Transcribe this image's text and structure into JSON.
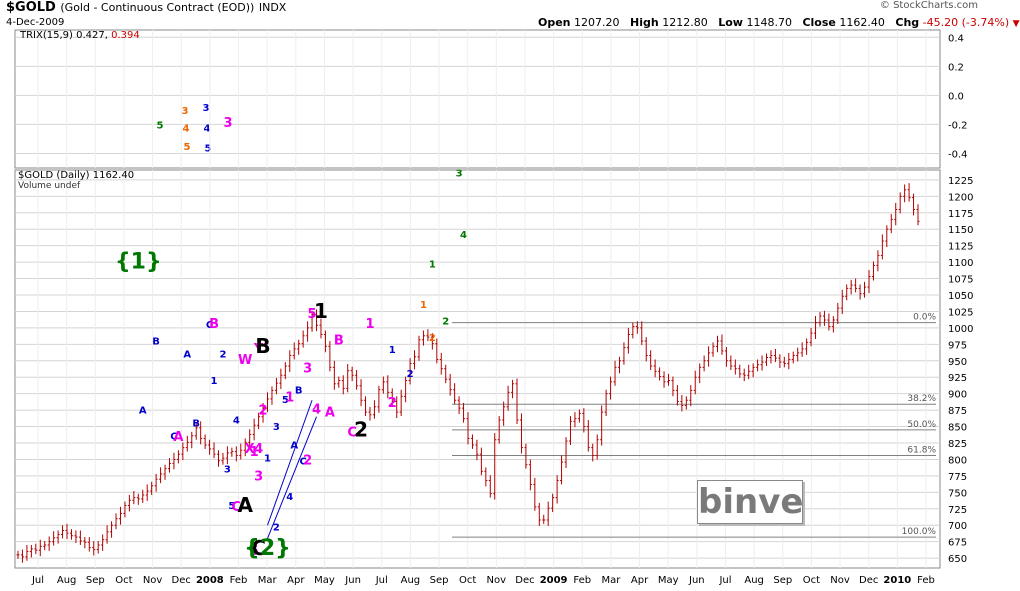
{
  "header": {
    "symbol": "$GOLD",
    "description": "(Gold - Continuous Contract (EOD))",
    "exchange": "INDX",
    "date": "4-Dec-2009",
    "brand": "© StockCharts.com",
    "open_label": "Open",
    "open": "1207.20",
    "high_label": "High",
    "high": "1212.80",
    "low_label": "Low",
    "low": "1148.70",
    "close_label": "Close",
    "close": "1162.40",
    "chg_label": "Chg",
    "chg": "-45.20 (-3.74%)"
  },
  "trix_legend": {
    "name": "TRIX(15,9)",
    "value": "0.427,",
    "signal": "0.394"
  },
  "gold_legend": {
    "name": "$GOLD (Daily) 1162.40",
    "volume": "Volume undef"
  },
  "watermark": "binve",
  "colors": {
    "price": "#b00000",
    "line_blue": "#0000cc",
    "grid": "#d4d4d4",
    "magenta": "#ee00ee",
    "green": "#007700",
    "orange": "#ee6600",
    "blue": "#0000cc",
    "black": "#000000"
  },
  "chart_data": [
    {
      "type": "line",
      "title": "TRIX(15,9)",
      "ylim": [
        -0.5,
        0.45
      ],
      "y_ticks": [
        "0.4",
        "0.2",
        "0.0",
        "-0.2",
        "-0.4"
      ],
      "annotations": [
        {
          "text": "5",
          "color": "green",
          "y": -0.2
        },
        {
          "text": "3",
          "color": "orange",
          "y": -0.1
        },
        {
          "text": "4",
          "color": "orange",
          "y": -0.22
        },
        {
          "text": "5",
          "color": "orange",
          "y": -0.35
        },
        {
          "text": "3",
          "color": "blue",
          "y": -0.08
        },
        {
          "text": "4",
          "color": "blue",
          "y": -0.22
        },
        {
          "text": "5",
          "color": "blue",
          "y": -0.36
        },
        {
          "text": "3",
          "color": "magenta",
          "y": -0.19
        }
      ]
    },
    {
      "type": "line",
      "title": "$GOLD (Daily)",
      "ylim": [
        635,
        1240
      ],
      "y_ticks": [
        "1225",
        "1200",
        "1175",
        "1150",
        "1125",
        "1100",
        "1075",
        "1050",
        "1025",
        "1000",
        "975",
        "950",
        "925",
        "900",
        "875",
        "850",
        "825",
        "800",
        "775",
        "750",
        "725",
        "700",
        "675",
        "650"
      ],
      "x_ticks": [
        "Jul",
        "Aug",
        "Sep",
        "Oct",
        "Nov",
        "Dec",
        "2008",
        "Feb",
        "Mar",
        "Apr",
        "May",
        "Jun",
        "Jul",
        "Aug",
        "Sep",
        "Oct",
        "Nov",
        "Dec",
        "2009",
        "Feb",
        "Mar",
        "Apr",
        "May",
        "Jun",
        "Jul",
        "Aug",
        "Sep",
        "Oct",
        "Nov",
        "Dec",
        "2010",
        "Feb"
      ],
      "close": [
        655,
        652,
        660,
        664,
        662,
        668,
        670,
        675,
        681,
        686,
        692,
        688,
        684,
        682,
        676,
        674,
        666,
        663,
        670,
        678,
        690,
        700,
        710,
        718,
        730,
        738,
        742,
        740,
        746,
        752,
        760,
        770,
        778,
        786,
        794,
        800,
        808,
        818,
        826,
        836,
        848,
        832,
        822,
        816,
        808,
        798,
        802,
        810,
        812,
        806,
        814,
        826,
        838,
        852,
        865,
        878,
        892,
        905,
        916,
        928,
        942,
        958,
        968,
        976,
        988,
        1000,
        1020,
        1004,
        990,
        972,
        940,
        915,
        920,
        908,
        935,
        928,
        912,
        890,
        872,
        868,
        880,
        906,
        918,
        902,
        888,
        872,
        896,
        920,
        946,
        956,
        982,
        988,
        986,
        976,
        952,
        938,
        922,
        906,
        890,
        878,
        862,
        832,
        822,
        808,
        782,
        768,
        748,
        830,
        860,
        880,
        902,
        915,
        860,
        818,
        792,
        762,
        728,
        708,
        708,
        726,
        742,
        768,
        796,
        828,
        858,
        862,
        870,
        850,
        818,
        806,
        830,
        872,
        900,
        918,
        940,
        950,
        970,
        990,
        1002,
        1000,
        980,
        958,
        942,
        934,
        926,
        918,
        920,
        905,
        888,
        882,
        890,
        905,
        925,
        940,
        950,
        962,
        972,
        980,
        965,
        950,
        942,
        938,
        930,
        928,
        934,
        940,
        944,
        948,
        955,
        958,
        954,
        948,
        946,
        952,
        958,
        962,
        968,
        978,
        992,
        1008,
        1018,
        1012,
        1002,
        1012,
        1030,
        1048,
        1060,
        1065,
        1060,
        1052,
        1062,
        1078,
        1095,
        1110,
        1132,
        1150,
        1165,
        1180,
        1200,
        1210,
        1198,
        1180,
        1162
      ],
      "fib_levels": [
        {
          "label": "0.0%",
          "price": 1008
        },
        {
          "label": "38.2%",
          "price": 884
        },
        {
          "label": "50.0%",
          "price": 845
        },
        {
          "label": "61.8%",
          "price": 806
        },
        {
          "label": "100.0%",
          "price": 682
        }
      ],
      "trendlines": [
        {
          "from": {
            "x": 56,
            "y": 700
          },
          "to": {
            "x": 66,
            "y": 890
          }
        },
        {
          "from": {
            "x": 56,
            "y": 680
          },
          "to": {
            "x": 67,
            "y": 865
          }
        }
      ],
      "wave_labels": [
        {
          "text": "{1}",
          "color": "green",
          "x": 27,
          "y": 1090,
          "size": "xl"
        },
        {
          "text": "A",
          "color": "blue",
          "x": 28,
          "y": 870,
          "size": "s"
        },
        {
          "text": "B",
          "color": "blue",
          "x": 31,
          "y": 975,
          "size": "s"
        },
        {
          "text": "C",
          "color": "blue",
          "x": 35,
          "y": 830,
          "size": "s"
        },
        {
          "text": "A",
          "color": "magenta",
          "x": 36,
          "y": 828,
          "size": "m"
        },
        {
          "text": "A",
          "color": "blue",
          "x": 38,
          "y": 955,
          "size": "s"
        },
        {
          "text": "B",
          "color": "blue",
          "x": 40,
          "y": 850,
          "size": "s"
        },
        {
          "text": "C",
          "color": "blue",
          "x": 43,
          "y": 1000,
          "size": "s"
        },
        {
          "text": "B",
          "color": "magenta",
          "x": 44,
          "y": 1000,
          "size": "m"
        },
        {
          "text": "1",
          "color": "blue",
          "x": 44,
          "y": 915,
          "size": "s"
        },
        {
          "text": "2",
          "color": "blue",
          "x": 46,
          "y": 955,
          "size": "s"
        },
        {
          "text": "3",
          "color": "blue",
          "x": 47,
          "y": 780,
          "size": "s"
        },
        {
          "text": "4",
          "color": "blue",
          "x": 49,
          "y": 855,
          "size": "s"
        },
        {
          "text": "5",
          "color": "blue",
          "x": 48,
          "y": 725,
          "size": "s"
        },
        {
          "text": "C",
          "color": "magenta",
          "x": 49,
          "y": 722,
          "size": "m"
        },
        {
          "text": "A",
          "color": "black",
          "x": 51,
          "y": 720,
          "size": "l"
        },
        {
          "text": "W",
          "color": "magenta",
          "x": 51,
          "y": 945,
          "size": "m"
        },
        {
          "text": "Y",
          "color": "magenta",
          "x": 54,
          "y": 962,
          "size": "m"
        },
        {
          "text": "B",
          "color": "black",
          "x": 55,
          "y": 962,
          "size": "l"
        },
        {
          "text": "X",
          "color": "magenta",
          "x": 52,
          "y": 810,
          "size": "m"
        },
        {
          "text": "1",
          "color": "magenta",
          "x": 53,
          "y": 805,
          "size": "m"
        },
        {
          "text": "4",
          "color": "magenta",
          "x": 54,
          "y": 810,
          "size": "m"
        },
        {
          "text": "2",
          "color": "magenta",
          "x": 55,
          "y": 868,
          "size": "m"
        },
        {
          "text": "3",
          "color": "magenta",
          "x": 54,
          "y": 768,
          "size": "m"
        },
        {
          "text": "1",
          "color": "blue",
          "x": 56,
          "y": 797,
          "size": "s"
        },
        {
          "text": "2",
          "color": "blue",
          "x": 58,
          "y": 692,
          "size": "s"
        },
        {
          "text": "3",
          "color": "blue",
          "x": 58,
          "y": 845,
          "size": "s"
        },
        {
          "text": "4",
          "color": "blue",
          "x": 61,
          "y": 738,
          "size": "s"
        },
        {
          "text": "5",
          "color": "blue",
          "x": 60,
          "y": 886,
          "size": "s"
        },
        {
          "text": "1",
          "color": "magenta",
          "x": 61,
          "y": 888,
          "size": "m"
        },
        {
          "text": "A",
          "color": "blue",
          "x": 62,
          "y": 817,
          "size": "s"
        },
        {
          "text": "B",
          "color": "blue",
          "x": 63,
          "y": 900,
          "size": "s"
        },
        {
          "text": "5",
          "color": "magenta",
          "x": 53,
          "y": 655,
          "size": "m"
        },
        {
          "text": "C",
          "color": "black",
          "x": 54,
          "y": 655,
          "size": "l"
        },
        {
          "text": "{2}",
          "color": "green",
          "x": 56,
          "y": 655,
          "size": "xl"
        },
        {
          "text": "C",
          "color": "blue",
          "x": 64,
          "y": 792,
          "size": "s"
        },
        {
          "text": "2",
          "color": "magenta",
          "x": 65,
          "y": 792,
          "size": "m"
        },
        {
          "text": "3",
          "color": "magenta",
          "x": 65,
          "y": 932,
          "size": "m"
        },
        {
          "text": "4",
          "color": "magenta",
          "x": 67,
          "y": 870,
          "size": "m"
        },
        {
          "text": "5",
          "color": "magenta",
          "x": 66,
          "y": 1015,
          "size": "m"
        },
        {
          "text": "1",
          "color": "black",
          "x": 68,
          "y": 1015,
          "size": "l"
        },
        {
          "text": "A",
          "color": "magenta",
          "x": 70,
          "y": 865,
          "size": "m"
        },
        {
          "text": "B",
          "color": "magenta",
          "x": 72,
          "y": 975,
          "size": "m"
        },
        {
          "text": "C",
          "color": "magenta",
          "x": 75,
          "y": 835,
          "size": "m"
        },
        {
          "text": "2",
          "color": "black",
          "x": 77,
          "y": 835,
          "size": "l"
        },
        {
          "text": "1",
          "color": "magenta",
          "x": 79,
          "y": 1000,
          "size": "m"
        },
        {
          "text": "1",
          "color": "blue",
          "x": 84,
          "y": 962,
          "size": "s"
        },
        {
          "text": "2",
          "color": "magenta",
          "x": 84,
          "y": 880,
          "size": "m"
        },
        {
          "text": "2",
          "color": "blue",
          "x": 88,
          "y": 925,
          "size": "s"
        },
        {
          "text": "1",
          "color": "orange",
          "x": 91,
          "y": 1030,
          "size": "s"
        },
        {
          "text": "2",
          "color": "orange",
          "x": 93,
          "y": 980,
          "size": "s"
        },
        {
          "text": "1",
          "color": "green",
          "x": 93,
          "y": 1092,
          "size": "s"
        },
        {
          "text": "2",
          "color": "green",
          "x": 96,
          "y": 1005,
          "size": "s"
        },
        {
          "text": "3",
          "color": "green",
          "x": 99,
          "y": 1230,
          "size": "s"
        },
        {
          "text": "4",
          "color": "green",
          "x": 100,
          "y": 1137,
          "size": "s"
        }
      ]
    }
  ]
}
